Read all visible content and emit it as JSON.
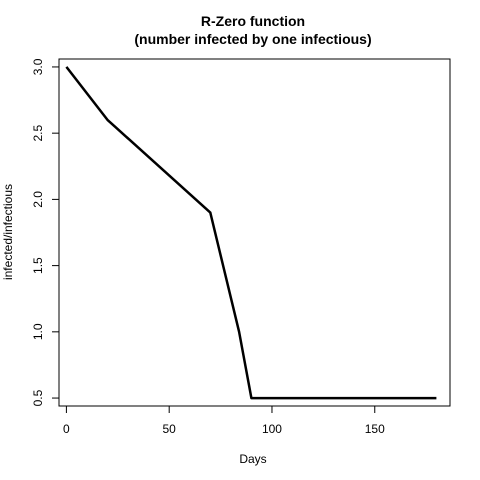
{
  "chart_data": {
    "type": "line",
    "title": [
      "R-Zero function",
      "(number infected by one infectious)"
    ],
    "xlabel": "Days",
    "ylabel": "infected/infectious",
    "xlim": [
      -3.6,
      186.6
    ],
    "ylim": [
      0.44,
      3.06
    ],
    "xticks": [
      0,
      50,
      100,
      150
    ],
    "yticks": [
      0.5,
      1.0,
      1.5,
      2.0,
      2.5,
      3.0
    ],
    "ytick_labels": [
      "0.5",
      "1.0",
      "1.5",
      "2.0",
      "2.5",
      "3.0"
    ],
    "grid": false,
    "legend": "none",
    "series": [
      {
        "x": [
          0,
          20,
          70,
          84,
          90,
          180
        ],
        "y": [
          3.0,
          2.6,
          1.9,
          1.0,
          0.5,
          0.5
        ],
        "color": "#000000"
      }
    ]
  }
}
